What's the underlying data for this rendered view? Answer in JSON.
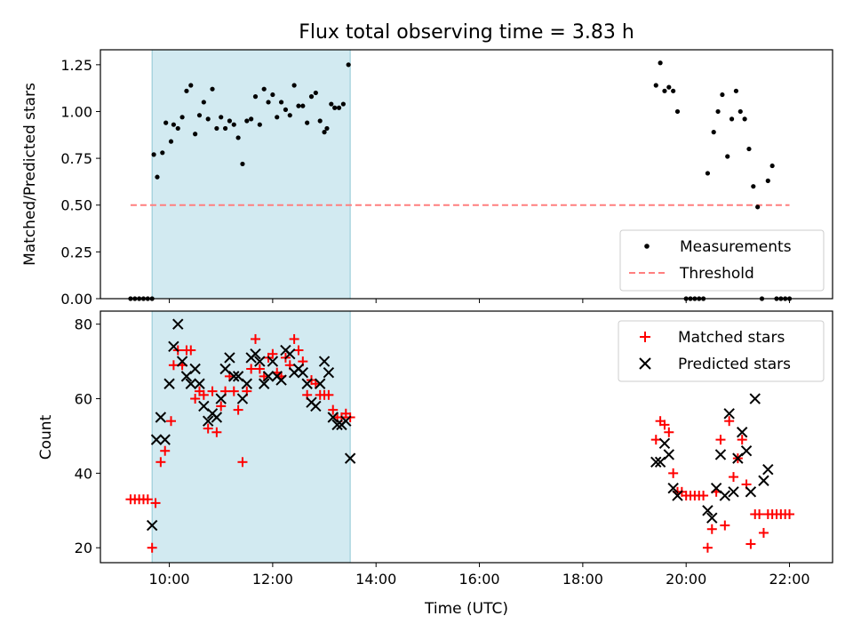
{
  "chart_data": [
    {
      "type": "scatter",
      "title": "Flux total observing time = 3.83 h",
      "xlabel": "",
      "ylabel": "Matched/Predicted stars",
      "xlim": [
        "08:40",
        "22:50"
      ],
      "ylim": [
        0,
        1.33
      ],
      "yticks": [
        "0.00",
        "0.25",
        "0.50",
        "0.75",
        "1.00",
        "1.25"
      ],
      "xticks": [
        "10:00",
        "12:00",
        "14:00",
        "16:00",
        "18:00",
        "20:00",
        "22:00"
      ],
      "shaded_span": [
        "09:40",
        "13:30"
      ],
      "shaded_color": "#add8e6",
      "threshold": {
        "label": "Threshold",
        "y": 0.5,
        "x_start": "09:15",
        "x_end": "22:00",
        "color": "#ff7f7f"
      },
      "legend": {
        "location": "lower right",
        "entries": [
          "Measurements",
          "Threshold"
        ]
      },
      "series": [
        {
          "name": "Measurements",
          "color": "#000000",
          "points": [
            [
              "09:15",
              0
            ],
            [
              "09:20",
              0
            ],
            [
              "09:25",
              0
            ],
            [
              "09:30",
              0
            ],
            [
              "09:35",
              0
            ],
            [
              "09:40",
              0
            ],
            [
              "09:42",
              0.77
            ],
            [
              "09:46",
              0.65
            ],
            [
              "09:52",
              0.78
            ],
            [
              "09:56",
              0.94
            ],
            [
              "10:02",
              0.84
            ],
            [
              "10:05",
              0.93
            ],
            [
              "10:10",
              0.91
            ],
            [
              "10:15",
              0.97
            ],
            [
              "10:20",
              1.11
            ],
            [
              "10:25",
              1.14
            ],
            [
              "10:30",
              0.88
            ],
            [
              "10:35",
              0.98
            ],
            [
              "10:40",
              1.05
            ],
            [
              "10:45",
              0.96
            ],
            [
              "10:50",
              1.12
            ],
            [
              "10:55",
              0.91
            ],
            [
              "11:00",
              0.97
            ],
            [
              "11:05",
              0.91
            ],
            [
              "11:10",
              0.95
            ],
            [
              "11:15",
              0.93
            ],
            [
              "11:20",
              0.86
            ],
            [
              "11:25",
              0.72
            ],
            [
              "11:30",
              0.95
            ],
            [
              "11:35",
              0.96
            ],
            [
              "11:40",
              1.08
            ],
            [
              "11:45",
              0.93
            ],
            [
              "11:50",
              1.12
            ],
            [
              "11:55",
              1.05
            ],
            [
              "12:00",
              1.09
            ],
            [
              "12:05",
              0.97
            ],
            [
              "12:10",
              1.05
            ],
            [
              "12:15",
              1.01
            ],
            [
              "12:20",
              0.98
            ],
            [
              "12:25",
              1.14
            ],
            [
              "12:30",
              1.03
            ],
            [
              "12:35",
              1.03
            ],
            [
              "12:40",
              0.94
            ],
            [
              "12:45",
              1.08
            ],
            [
              "12:50",
              1.1
            ],
            [
              "12:55",
              0.95
            ],
            [
              "13:00",
              0.89
            ],
            [
              "13:03",
              0.91
            ],
            [
              "13:08",
              1.04
            ],
            [
              "13:12",
              1.02
            ],
            [
              "13:17",
              1.02
            ],
            [
              "13:22",
              1.04
            ],
            [
              "13:28",
              1.25
            ],
            [
              "19:25",
              1.14
            ],
            [
              "19:30",
              1.26
            ],
            [
              "19:35",
              1.11
            ],
            [
              "19:40",
              1.13
            ],
            [
              "19:45",
              1.11
            ],
            [
              "19:50",
              1.0
            ],
            [
              "20:00",
              0
            ],
            [
              "20:05",
              0
            ],
            [
              "20:10",
              0
            ],
            [
              "20:15",
              0
            ],
            [
              "20:20",
              0
            ],
            [
              "20:25",
              0.67
            ],
            [
              "20:32",
              0.89
            ],
            [
              "20:37",
              1.0
            ],
            [
              "20:42",
              1.09
            ],
            [
              "20:48",
              0.76
            ],
            [
              "20:53",
              0.96
            ],
            [
              "20:58",
              1.11
            ],
            [
              "21:03",
              1.0
            ],
            [
              "21:08",
              0.96
            ],
            [
              "21:13",
              0.8
            ],
            [
              "21:18",
              0.6
            ],
            [
              "21:23",
              0.49
            ],
            [
              "21:28",
              0
            ],
            [
              "21:35",
              0.63
            ],
            [
              "21:40",
              0.71
            ],
            [
              "21:45",
              0
            ],
            [
              "21:50",
              0
            ],
            [
              "21:55",
              0
            ],
            [
              "22:00",
              0
            ]
          ]
        }
      ]
    },
    {
      "type": "scatter",
      "title": "",
      "xlabel": "Time (UTC)",
      "ylabel": "Count",
      "xlim": [
        "08:40",
        "22:50"
      ],
      "ylim": [
        16,
        83.5
      ],
      "yticks": [
        "20",
        "40",
        "60",
        "80"
      ],
      "xticks": [
        "10:00",
        "12:00",
        "14:00",
        "16:00",
        "18:00",
        "20:00",
        "22:00"
      ],
      "shaded_span": [
        "09:40",
        "13:30"
      ],
      "shaded_color": "#add8e6",
      "legend": {
        "location": "upper right",
        "entries": [
          "Matched stars",
          "Predicted stars"
        ]
      },
      "series": [
        {
          "name": "Matched stars",
          "marker": "plus",
          "color": "#ff0000",
          "points": [
            [
              "09:15",
              33
            ],
            [
              "09:20",
              33
            ],
            [
              "09:25",
              33
            ],
            [
              "09:30",
              33
            ],
            [
              "09:35",
              33
            ],
            [
              "09:40",
              20
            ],
            [
              "09:44",
              32
            ],
            [
              "09:50",
              43
            ],
            [
              "09:55",
              46
            ],
            [
              "10:02",
              54
            ],
            [
              "10:05",
              69
            ],
            [
              "10:10",
              73
            ],
            [
              "10:15",
              69
            ],
            [
              "10:20",
              73
            ],
            [
              "10:25",
              73
            ],
            [
              "10:30",
              60
            ],
            [
              "10:35",
              62
            ],
            [
              "10:40",
              61
            ],
            [
              "10:45",
              52
            ],
            [
              "10:50",
              62
            ],
            [
              "10:55",
              51
            ],
            [
              "11:00",
              58
            ],
            [
              "11:05",
              62
            ],
            [
              "11:10",
              66
            ],
            [
              "11:15",
              62
            ],
            [
              "11:20",
              57
            ],
            [
              "11:25",
              43
            ],
            [
              "11:30",
              62
            ],
            [
              "11:35",
              68
            ],
            [
              "11:40",
              76
            ],
            [
              "11:45",
              68
            ],
            [
              "11:50",
              66
            ],
            [
              "11:55",
              71
            ],
            [
              "12:00",
              72
            ],
            [
              "12:05",
              67
            ],
            [
              "12:10",
              66
            ],
            [
              "12:15",
              71
            ],
            [
              "12:20",
              69
            ],
            [
              "12:25",
              76
            ],
            [
              "12:30",
              73
            ],
            [
              "12:35",
              70
            ],
            [
              "12:40",
              61
            ],
            [
              "12:45",
              65
            ],
            [
              "12:50",
              64
            ],
            [
              "12:55",
              61
            ],
            [
              "13:00",
              61
            ],
            [
              "13:05",
              61
            ],
            [
              "13:10",
              57
            ],
            [
              "13:15",
              55
            ],
            [
              "13:20",
              55
            ],
            [
              "13:25",
              56
            ],
            [
              "13:30",
              55
            ],
            [
              "19:25",
              49
            ],
            [
              "19:30",
              54
            ],
            [
              "19:35",
              53
            ],
            [
              "19:40",
              51
            ],
            [
              "19:45",
              40
            ],
            [
              "19:50",
              35
            ],
            [
              "19:55",
              35
            ],
            [
              "20:00",
              34
            ],
            [
              "20:05",
              34
            ],
            [
              "20:10",
              34
            ],
            [
              "20:15",
              34
            ],
            [
              "20:20",
              34
            ],
            [
              "20:25",
              20
            ],
            [
              "20:30",
              25
            ],
            [
              "20:35",
              35
            ],
            [
              "20:40",
              49
            ],
            [
              "20:45",
              26
            ],
            [
              "20:50",
              54
            ],
            [
              "20:55",
              39
            ],
            [
              "21:00",
              44
            ],
            [
              "21:05",
              49
            ],
            [
              "21:10",
              37
            ],
            [
              "21:15",
              21
            ],
            [
              "21:20",
              29
            ],
            [
              "21:25",
              29
            ],
            [
              "21:30",
              24
            ],
            [
              "21:35",
              29
            ],
            [
              "21:40",
              29
            ],
            [
              "21:45",
              29
            ],
            [
              "21:50",
              29
            ],
            [
              "21:55",
              29
            ],
            [
              "22:00",
              29
            ]
          ]
        },
        {
          "name": "Predicted stars",
          "marker": "x",
          "color": "#000000",
          "points": [
            [
              "09:40",
              26
            ],
            [
              "09:45",
              49
            ],
            [
              "09:50",
              55
            ],
            [
              "09:55",
              49
            ],
            [
              "10:00",
              64
            ],
            [
              "10:05",
              74
            ],
            [
              "10:10",
              80
            ],
            [
              "10:15",
              70
            ],
            [
              "10:20",
              66
            ],
            [
              "10:25",
              64
            ],
            [
              "10:30",
              68
            ],
            [
              "10:35",
              64
            ],
            [
              "10:40",
              58
            ],
            [
              "10:45",
              54
            ],
            [
              "10:50",
              56
            ],
            [
              "10:55",
              55
            ],
            [
              "11:00",
              60
            ],
            [
              "11:05",
              68
            ],
            [
              "11:10",
              71
            ],
            [
              "11:15",
              66
            ],
            [
              "11:20",
              66
            ],
            [
              "11:25",
              60
            ],
            [
              "11:30",
              64
            ],
            [
              "11:35",
              71
            ],
            [
              "11:40",
              72
            ],
            [
              "11:45",
              70
            ],
            [
              "11:50",
              64
            ],
            [
              "11:55",
              66
            ],
            [
              "12:00",
              70
            ],
            [
              "12:05",
              66
            ],
            [
              "12:10",
              65
            ],
            [
              "12:15",
              73
            ],
            [
              "12:20",
              72
            ],
            [
              "12:25",
              67
            ],
            [
              "12:30",
              68
            ],
            [
              "12:35",
              67
            ],
            [
              "12:40",
              64
            ],
            [
              "12:45",
              59
            ],
            [
              "12:50",
              58
            ],
            [
              "12:55",
              64
            ],
            [
              "13:00",
              70
            ],
            [
              "13:05",
              67
            ],
            [
              "13:10",
              55
            ],
            [
              "13:15",
              53
            ],
            [
              "13:20",
              53
            ],
            [
              "13:25",
              54
            ],
            [
              "13:30",
              44
            ],
            [
              "19:25",
              43
            ],
            [
              "19:30",
              43
            ],
            [
              "19:35",
              48
            ],
            [
              "19:40",
              45
            ],
            [
              "19:45",
              36
            ],
            [
              "19:50",
              34
            ],
            [
              "20:25",
              30
            ],
            [
              "20:30",
              28
            ],
            [
              "20:35",
              36
            ],
            [
              "20:40",
              45
            ],
            [
              "20:45",
              34
            ],
            [
              "20:50",
              56
            ],
            [
              "20:55",
              35
            ],
            [
              "21:00",
              44
            ],
            [
              "21:05",
              51
            ],
            [
              "21:10",
              46
            ],
            [
              "21:15",
              35
            ],
            [
              "21:20",
              60
            ],
            [
              "21:30",
              38
            ],
            [
              "21:35",
              41
            ]
          ]
        }
      ]
    }
  ]
}
